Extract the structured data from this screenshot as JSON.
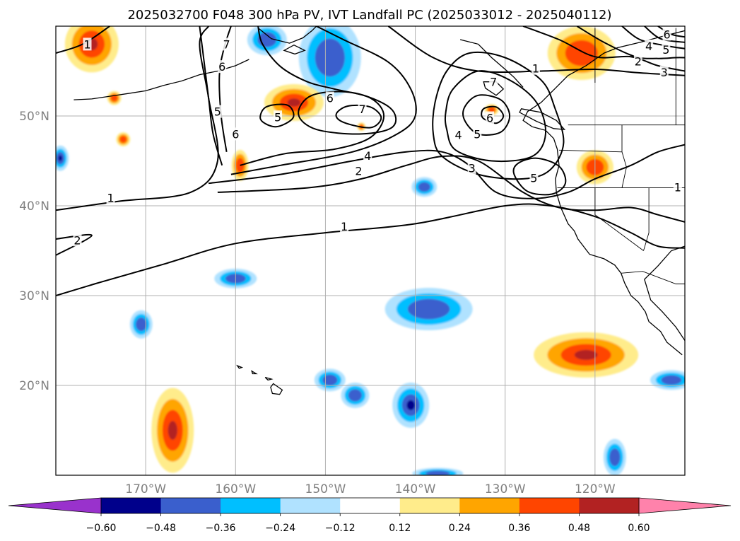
{
  "chart_data": {
    "type": "contour",
    "title": "2025032700 F048 300 hPa PV, IVT Landfall PC (2025033012 - 2025040112)",
    "xlabel": "",
    "ylabel": "",
    "xlim": [
      -180,
      -110
    ],
    "ylim": [
      10,
      60
    ],
    "grid": true,
    "x_ticks": [
      -170,
      -160,
      -150,
      -140,
      -130,
      -120
    ],
    "x_tick_labels": [
      "170°W",
      "160°W",
      "150°W",
      "140°W",
      "130°W",
      "120°W"
    ],
    "y_ticks": [
      20,
      30,
      40,
      50
    ],
    "y_tick_labels": [
      "20°N",
      "30°N",
      "40°N",
      "50°N"
    ],
    "colorbar": {
      "extend": "both",
      "boundaries": [
        -0.6,
        -0.48,
        -0.36,
        -0.24,
        -0.12,
        0.12,
        0.24,
        0.36,
        0.48,
        0.6
      ],
      "tick_labels": [
        "−0.60",
        "−0.48",
        "−0.36",
        "−0.24",
        "−0.12",
        "0.12",
        "0.24",
        "0.36",
        "0.48",
        "0.60"
      ],
      "colors": [
        "#9932cc",
        "#00008b",
        "#3a5fcd",
        "#00bfff",
        "#b0e2ff",
        "#ffffff",
        "#ffec8b",
        "#ffa500",
        "#ff4500",
        "#b22222",
        "#ff82ab"
      ]
    },
    "contour_levels": [
      1,
      2,
      3,
      4,
      5,
      6,
      7,
      8
    ],
    "contour_labels": [
      {
        "text": "1",
        "lon": -173.9,
        "lat": 40.9
      },
      {
        "text": "2",
        "lon": -177.6,
        "lat": 36.2
      },
      {
        "text": "1",
        "lon": -147.9,
        "lat": 37.7
      },
      {
        "text": "2",
        "lon": -146.3,
        "lat": 43.9
      },
      {
        "text": "4",
        "lon": -145.3,
        "lat": 45.6
      },
      {
        "text": "3",
        "lon": -133.7,
        "lat": 44.2
      },
      {
        "text": "4",
        "lon": -135.2,
        "lat": 47.9
      },
      {
        "text": "5",
        "lon": -133.1,
        "lat": 48.0
      },
      {
        "text": "5",
        "lon": -126.8,
        "lat": 43.1
      },
      {
        "text": "6",
        "lon": -149.5,
        "lat": 52.0
      },
      {
        "text": "7",
        "lon": -145.9,
        "lat": 50.8
      },
      {
        "text": "5",
        "lon": -155.3,
        "lat": 49.9
      },
      {
        "text": "6",
        "lon": -160.0,
        "lat": 48.0
      },
      {
        "text": "5",
        "lon": -162.0,
        "lat": 50.5
      },
      {
        "text": "6",
        "lon": -161.5,
        "lat": 55.5
      },
      {
        "text": "7",
        "lon": -161.0,
        "lat": 58.0
      },
      {
        "text": "6",
        "lon": -131.7,
        "lat": 49.8
      },
      {
        "text": "7",
        "lon": -131.3,
        "lat": 53.8
      },
      {
        "text": "1",
        "lon": -126.6,
        "lat": 55.3
      },
      {
        "text": "2",
        "lon": -115.2,
        "lat": 56.1
      },
      {
        "text": "3",
        "lon": -112.3,
        "lat": 54.9
      },
      {
        "text": "4",
        "lon": -114.0,
        "lat": 57.8
      },
      {
        "text": "5",
        "lon": -112.1,
        "lat": 57.4
      },
      {
        "text": "6",
        "lon": -112.0,
        "lat": 59.1
      },
      {
        "text": "1",
        "lon": -110.8,
        "lat": 42.1
      },
      {
        "text": "1",
        "lon": -176.5,
        "lat": 58.0
      }
    ],
    "shaded_anomalies": [
      {
        "sign": "negative",
        "lon": -149.5,
        "lat": 56.5,
        "peak": -0.36
      },
      {
        "sign": "negative",
        "lon": -156.5,
        "lat": 58.5,
        "peak": -0.36
      },
      {
        "sign": "negative",
        "lon": -179.5,
        "lat": 45.3,
        "peak": -0.48
      },
      {
        "sign": "negative",
        "lon": -139.0,
        "lat": 42.1,
        "peak": -0.36
      },
      {
        "sign": "negative",
        "lon": -160.0,
        "lat": 31.9,
        "peak": -0.36
      },
      {
        "sign": "negative",
        "lon": -138.5,
        "lat": 28.5,
        "peak": -0.36
      },
      {
        "sign": "negative",
        "lon": -170.5,
        "lat": 26.8,
        "peak": -0.36
      },
      {
        "sign": "negative",
        "lon": -140.5,
        "lat": 17.8,
        "peak": -0.48
      },
      {
        "sign": "negative",
        "lon": -149.5,
        "lat": 20.6,
        "peak": -0.36
      },
      {
        "sign": "negative",
        "lon": -146.7,
        "lat": 18.9,
        "peak": -0.36
      },
      {
        "sign": "negative",
        "lon": -117.8,
        "lat": 12.0,
        "peak": -0.36
      },
      {
        "sign": "negative",
        "lon": -111.5,
        "lat": 20.6,
        "peak": -0.36
      },
      {
        "sign": "negative",
        "lon": -137.5,
        "lat": 10.2,
        "peak": -0.36
      },
      {
        "sign": "positive",
        "lon": -176.0,
        "lat": 58.0,
        "peak": 0.48
      },
      {
        "sign": "positive",
        "lon": -153.5,
        "lat": 51.5,
        "peak": 0.48
      },
      {
        "sign": "positive",
        "lon": -159.5,
        "lat": 44.5,
        "peak": 0.36
      },
      {
        "sign": "positive",
        "lon": -172.5,
        "lat": 47.4,
        "peak": 0.36
      },
      {
        "sign": "positive",
        "lon": -173.5,
        "lat": 52.0,
        "peak": 0.36
      },
      {
        "sign": "positive",
        "lon": -121.5,
        "lat": 57.0,
        "peak": 0.36
      },
      {
        "sign": "positive",
        "lon": -120.0,
        "lat": 44.3,
        "peak": 0.36
      },
      {
        "sign": "positive",
        "lon": -121.0,
        "lat": 23.4,
        "peak": 0.48
      },
      {
        "sign": "positive",
        "lon": -167.0,
        "lat": 15.0,
        "peak": 0.48
      },
      {
        "sign": "positive",
        "lon": -146.0,
        "lat": 48.8,
        "peak": 0.36
      },
      {
        "sign": "positive",
        "lon": -131.5,
        "lat": 50.7,
        "peak": 0.36
      }
    ]
  }
}
